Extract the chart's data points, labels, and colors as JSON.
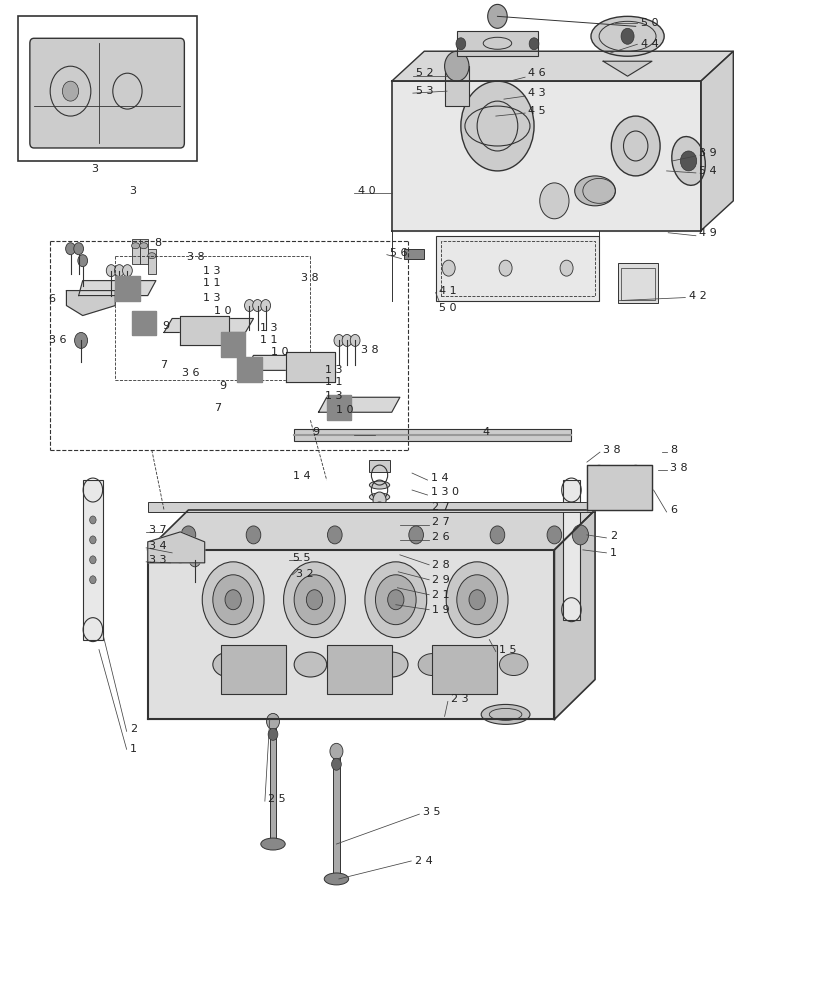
{
  "bg_color": "#ffffff",
  "line_color": "#333333",
  "fig_width": 8.16,
  "fig_height": 10.0,
  "dpi": 100
}
